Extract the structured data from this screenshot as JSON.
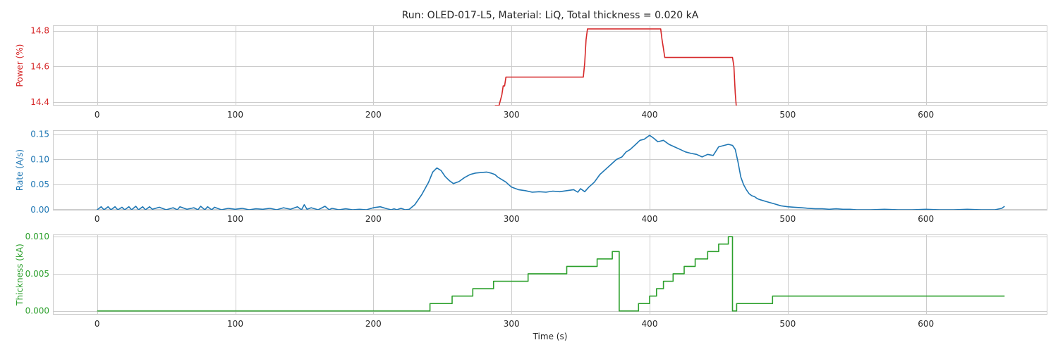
{
  "chart_data": {
    "type": "line",
    "title": "Run: OLED-017-L5, Material: LiQ, Total thickness = 0.020 kA",
    "xlabel": "Time (s)",
    "xlim": [
      -32,
      688
    ],
    "xticks": [
      0,
      100,
      200,
      300,
      400,
      500,
      600
    ],
    "grid": true,
    "panels": [
      {
        "ylabel": "Power (%)",
        "color": "#d62728",
        "ylim": [
          14.38,
          14.83
        ],
        "yticks": [
          14.4,
          14.6,
          14.8
        ],
        "yticklabels": [
          "14.4",
          "14.6",
          "14.8"
        ],
        "series": {
          "x": [
            288,
            291,
            293,
            294,
            295,
            296,
            298,
            300,
            352,
            353,
            354,
            355,
            360,
            380,
            408,
            409,
            410,
            411,
            412,
            420,
            440,
            460,
            461,
            462,
            463
          ],
          "y": [
            14.38,
            14.38,
            14.44,
            14.49,
            14.49,
            14.54,
            14.54,
            14.54,
            14.54,
            14.62,
            14.75,
            14.81,
            14.81,
            14.81,
            14.81,
            14.75,
            14.7,
            14.65,
            14.65,
            14.65,
            14.65,
            14.65,
            14.6,
            14.45,
            14.35
          ]
        }
      },
      {
        "ylabel": "Rate (A/s)",
        "color": "#1f77b4",
        "ylim": [
          0,
          0.158
        ],
        "yticks": [
          0,
          0.05,
          0.1,
          0.15
        ],
        "yticklabels": [
          "0.00",
          "0.05",
          "0.10",
          "0.15"
        ],
        "series": {
          "x": [
            0,
            3,
            5,
            8,
            10,
            13,
            15,
            18,
            20,
            23,
            25,
            28,
            30,
            33,
            35,
            38,
            40,
            45,
            50,
            55,
            58,
            60,
            65,
            70,
            73,
            75,
            78,
            80,
            83,
            85,
            90,
            95,
            100,
            105,
            110,
            115,
            120,
            125,
            130,
            135,
            140,
            145,
            148,
            150,
            152,
            155,
            160,
            165,
            168,
            170,
            175,
            180,
            185,
            190,
            195,
            200,
            205,
            210,
            213,
            215,
            217,
            220,
            223,
            226,
            230,
            235,
            240,
            243,
            246,
            249,
            252,
            255,
            258,
            262,
            266,
            270,
            274,
            278,
            282,
            285,
            288,
            290,
            293,
            296,
            300,
            305,
            310,
            315,
            320,
            325,
            330,
            335,
            340,
            345,
            348,
            350,
            353,
            356,
            360,
            364,
            368,
            372,
            376,
            380,
            383,
            386,
            390,
            393,
            396,
            400,
            403,
            406,
            410,
            414,
            418,
            422,
            426,
            430,
            434,
            438,
            442,
            446,
            450,
            454,
            457,
            460,
            462,
            464,
            466,
            468,
            470,
            472,
            474,
            476,
            478,
            480,
            485,
            490,
            495,
            500,
            505,
            510,
            515,
            520,
            525,
            530,
            535,
            540,
            545,
            550,
            560,
            570,
            580,
            590,
            600,
            610,
            620,
            630,
            640,
            650,
            655,
            657
          ],
          "y": [
            0.0,
            0.006,
            0.0,
            0.006,
            0.0,
            0.006,
            0.0,
            0.005,
            0.0,
            0.006,
            0.0,
            0.007,
            0.0,
            0.006,
            0.0,
            0.006,
            0.001,
            0.005,
            0.0,
            0.004,
            0.0,
            0.006,
            0.001,
            0.004,
            0.0,
            0.007,
            0.0,
            0.006,
            0.0,
            0.005,
            0.0,
            0.003,
            0.001,
            0.003,
            0.0,
            0.002,
            0.001,
            0.003,
            0.0,
            0.004,
            0.001,
            0.006,
            0.0,
            0.01,
            0.001,
            0.004,
            0.0,
            0.007,
            0.0,
            0.003,
            0.0,
            0.002,
            0.0,
            0.001,
            0.0,
            0.004,
            0.006,
            0.002,
            0.0,
            0.002,
            0.0,
            0.003,
            0.0,
            0.001,
            0.01,
            0.03,
            0.055,
            0.075,
            0.083,
            0.078,
            0.066,
            0.058,
            0.052,
            0.056,
            0.064,
            0.07,
            0.073,
            0.074,
            0.075,
            0.073,
            0.07,
            0.065,
            0.06,
            0.055,
            0.045,
            0.04,
            0.038,
            0.035,
            0.036,
            0.035,
            0.037,
            0.036,
            0.038,
            0.04,
            0.035,
            0.042,
            0.036,
            0.045,
            0.055,
            0.07,
            0.08,
            0.09,
            0.1,
            0.105,
            0.115,
            0.12,
            0.13,
            0.138,
            0.14,
            0.148,
            0.142,
            0.135,
            0.138,
            0.13,
            0.125,
            0.12,
            0.115,
            0.112,
            0.11,
            0.105,
            0.11,
            0.108,
            0.125,
            0.128,
            0.13,
            0.128,
            0.12,
            0.095,
            0.065,
            0.05,
            0.04,
            0.032,
            0.028,
            0.026,
            0.022,
            0.02,
            0.016,
            0.012,
            0.008,
            0.006,
            0.005,
            0.004,
            0.003,
            0.002,
            0.002,
            0.001,
            0.002,
            0.001,
            0.001,
            0.0,
            0.0,
            0.001,
            0.0,
            0.0,
            0.001,
            0.0,
            0.0,
            0.001,
            0.0,
            0.0,
            0.003,
            0.007
          ]
        }
      },
      {
        "ylabel": "Thickness (kA)",
        "color": "#2ca02c",
        "ylim": [
          -0.0005,
          0.0103
        ],
        "yticks": [
          0,
          0.005,
          0.01
        ],
        "yticklabels": [
          "0.000",
          "0.005",
          "0.010"
        ],
        "series": {
          "x": [
            0,
            241,
            241,
            257,
            257,
            272,
            272,
            287,
            287,
            312,
            312,
            340,
            340,
            362,
            362,
            373,
            373,
            378,
            378,
            383,
            383,
            392,
            392,
            400,
            400,
            405,
            405,
            410,
            410,
            417,
            417,
            425,
            425,
            433,
            433,
            442,
            442,
            450,
            450,
            457,
            457,
            460,
            460,
            463,
            463,
            465,
            465,
            489,
            489,
            657
          ],
          "y": [
            0,
            0,
            0.001,
            0.001,
            0.002,
            0.002,
            0.003,
            0.003,
            0.004,
            0.004,
            0.005,
            0.005,
            0.006,
            0.006,
            0.007,
            0.007,
            0.008,
            0.008,
            0,
            0,
            0.0,
            0.0,
            0.001,
            0.001,
            0.002,
            0.002,
            0.003,
            0.003,
            0.004,
            0.004,
            0.005,
            0.005,
            0.006,
            0.006,
            0.007,
            0.007,
            0.008,
            0.008,
            0.009,
            0.009,
            0.01,
            0.01,
            0,
            0,
            0.001,
            0.001,
            0.001,
            0.001,
            0.002,
            0.002
          ]
        }
      }
    ]
  }
}
